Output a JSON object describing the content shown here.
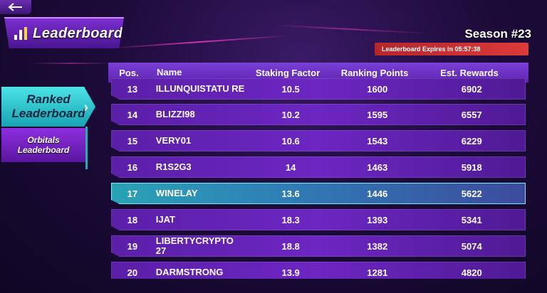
{
  "title": "Leaderboard",
  "season": "Season #23",
  "expires": "Leaderboard Expires in 05:57:38",
  "tabs": {
    "ranked_line1": "Ranked",
    "ranked_line2": "Leaderboard",
    "orbitals_line1": "Orbitals",
    "orbitals_line2": "Leaderboard"
  },
  "headers": {
    "pos": "Pos.",
    "name": "Name",
    "staking": "Staking Factor",
    "ranking": "Ranking Points",
    "rewards": "Est. Rewards"
  },
  "rows": [
    {
      "pos": "13",
      "name": "ILLUNQUISTATU RE",
      "staking": "10.5",
      "ranking": "1600",
      "rewards": "6902"
    },
    {
      "pos": "14",
      "name": "BLIZZI98",
      "staking": "10.2",
      "ranking": "1595",
      "rewards": "6557"
    },
    {
      "pos": "15",
      "name": "VERY01",
      "staking": "10.6",
      "ranking": "1543",
      "rewards": "6229"
    },
    {
      "pos": "16",
      "name": "R1S2G3",
      "staking": "14",
      "ranking": "1463",
      "rewards": "5918"
    },
    {
      "pos": "17",
      "name": "WINELAY",
      "staking": "13.6",
      "ranking": "1446",
      "rewards": "5622"
    },
    {
      "pos": "18",
      "name": "IJAT",
      "staking": "18.3",
      "ranking": "1393",
      "rewards": "5341"
    },
    {
      "pos": "19",
      "name": "LIBERTYCRYPTO 27",
      "staking": "18.8",
      "ranking": "1382",
      "rewards": "5074"
    },
    {
      "pos": "20",
      "name": "DARMSTRONG",
      "staking": "13.9",
      "ranking": "1281",
      "rewards": "4820"
    }
  ],
  "colors": {
    "accent_cyan": "#4be3e6",
    "purple": "#6c26c2",
    "expires_red": "#dd3a3a"
  }
}
